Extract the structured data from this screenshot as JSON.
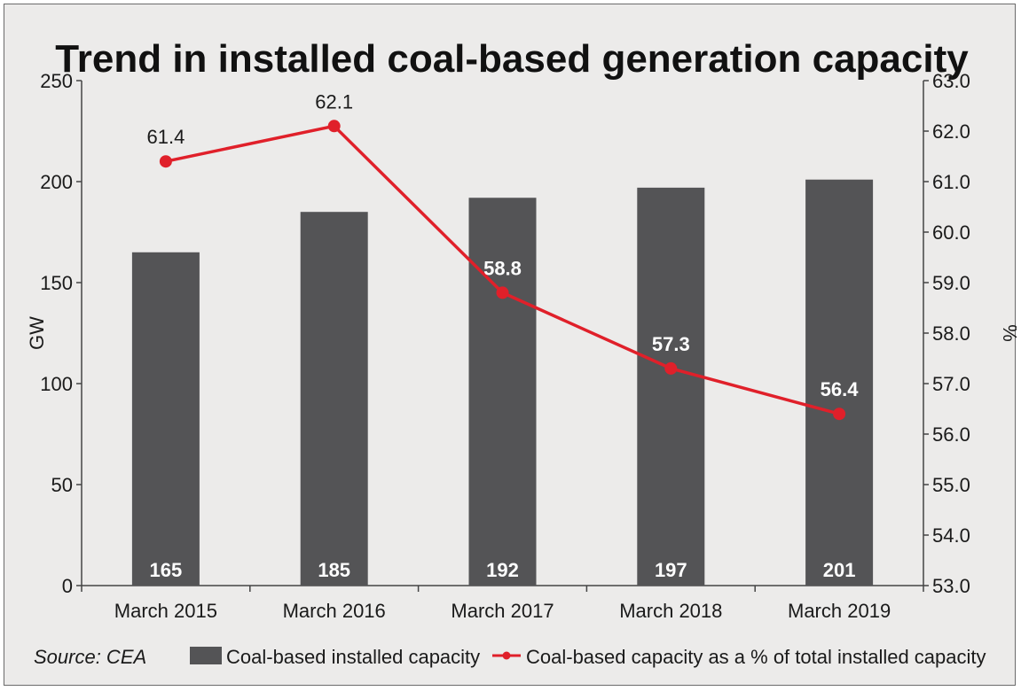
{
  "source": "Source: CEA",
  "colors": {
    "bar": "#545456",
    "line": "#e0202a",
    "background": "#ecebea",
    "axis": "#444444"
  },
  "chart_data": {
    "type": "bar+line",
    "title": "Trend in installed coal-based generation capacity",
    "categories": [
      "March 2015",
      "March 2016",
      "March 2017",
      "March 2018",
      "March 2019"
    ],
    "y_left": {
      "label": "GW",
      "range": [
        0,
        250
      ],
      "ticks": [
        "0",
        "50",
        "100",
        "150",
        "200",
        "250"
      ]
    },
    "y_right": {
      "label": "%",
      "range": [
        53.0,
        63.0
      ],
      "ticks": [
        "53.0",
        "54.0",
        "55.0",
        "56.0",
        "57.0",
        "58.0",
        "59.0",
        "60.0",
        "61.0",
        "62.0",
        "63.0"
      ]
    },
    "series": [
      {
        "name": "Coal-based installed capacity",
        "type": "bar",
        "axis": "left",
        "values": [
          165,
          185,
          192,
          197,
          201
        ],
        "labels": [
          "165",
          "185",
          "192",
          "197",
          "201"
        ]
      },
      {
        "name": "Coal-based capacity as a % of total installed capacity",
        "type": "line",
        "axis": "right",
        "values": [
          61.4,
          62.1,
          58.8,
          57.3,
          56.4
        ],
        "labels": [
          "61.4",
          "62.1",
          "58.8",
          "57.3",
          "56.4"
        ]
      }
    ],
    "legend_position": "bottom",
    "grid": false
  }
}
